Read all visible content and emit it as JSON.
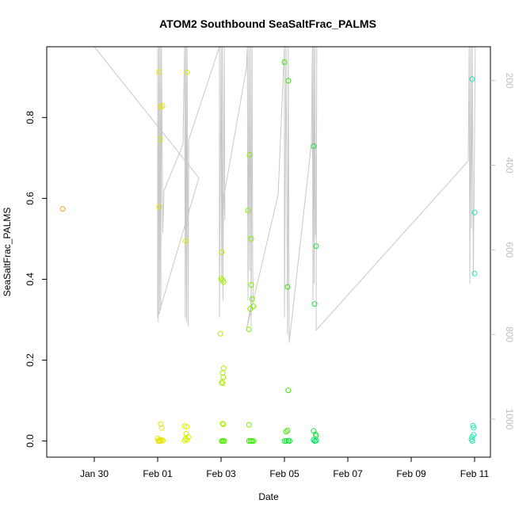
{
  "chart_data": {
    "type": "scatter",
    "title": "ATOM2 Southbound SeaSaltFrac_PALMS",
    "xlabel": "Date",
    "ylabel": "SeaSaltFrac_PALMS",
    "x_ticks": [
      "Jan 30",
      "Feb 01",
      "Feb 03",
      "Feb 05",
      "Feb 07",
      "Feb 09",
      "Feb 11"
    ],
    "x_tick_values": [
      1.5,
      3.5,
      5.5,
      7.5,
      9.5,
      11.5,
      13.5
    ],
    "xlim": [
      0,
      14
    ],
    "y_ticks": [
      0.0,
      0.2,
      0.4,
      0.6,
      0.8
    ],
    "y_tick_labels": [
      "0.0",
      "0.2",
      "0.4",
      "0.6",
      "0.8"
    ],
    "ylim": [
      -0.04,
      0.975
    ],
    "secondary_axis": {
      "label_color": "#bfbfbf",
      "ticks": [
        200,
        400,
        600,
        800,
        1000
      ],
      "tick_labels": [
        "200",
        "400",
        "600",
        "800",
        "1000"
      ],
      "lim": [
        1090,
        120
      ],
      "note": "pressure profile (reversed)"
    },
    "grid": false,
    "points": [
      {
        "x": 0.5,
        "y": 0.574,
        "color": "#f5a623"
      },
      {
        "x": 3.55,
        "y": 0.913,
        "color": "#e3e300"
      },
      {
        "x": 3.65,
        "y": 0.829,
        "color": "#e3e300"
      },
      {
        "x": 3.6,
        "y": 0.826,
        "color": "#e3e300"
      },
      {
        "x": 3.58,
        "y": 0.746,
        "color": "#e3e300"
      },
      {
        "x": 3.55,
        "y": 0.579,
        "color": "#e3e300"
      },
      {
        "x": 3.6,
        "y": 0.042,
        "color": "#e3e300"
      },
      {
        "x": 3.63,
        "y": 0.032,
        "color": "#e3e300"
      },
      {
        "x": 3.5,
        "y": 0.006,
        "color": "#e3e300"
      },
      {
        "x": 3.55,
        "y": 0.002,
        "color": "#e3e300"
      },
      {
        "x": 3.58,
        "y": 0.0,
        "color": "#e3e300"
      },
      {
        "x": 3.62,
        "y": 0.003,
        "color": "#e3e300"
      },
      {
        "x": 3.66,
        "y": 0.001,
        "color": "#e3e300"
      },
      {
        "x": 3.52,
        "y": 0.0,
        "color": "#e3e300"
      },
      {
        "x": 4.42,
        "y": 0.912,
        "color": "#d8f000"
      },
      {
        "x": 4.37,
        "y": 0.495,
        "color": "#d8f000"
      },
      {
        "x": 4.35,
        "y": 0.037,
        "color": "#d8f000"
      },
      {
        "x": 4.42,
        "y": 0.035,
        "color": "#d8f000"
      },
      {
        "x": 4.4,
        "y": 0.018,
        "color": "#d8f000"
      },
      {
        "x": 4.46,
        "y": 0.01,
        "color": "#d8f000"
      },
      {
        "x": 4.38,
        "y": 0.006,
        "color": "#d8f000"
      },
      {
        "x": 4.35,
        "y": 0.001,
        "color": "#d8f000"
      },
      {
        "x": 4.42,
        "y": 0.003,
        "color": "#d8f000"
      },
      {
        "x": 5.52,
        "y": 0.467,
        "color": "#a8f000"
      },
      {
        "x": 5.5,
        "y": 0.401,
        "color": "#a8f000"
      },
      {
        "x": 5.55,
        "y": 0.398,
        "color": "#a8f000"
      },
      {
        "x": 5.58,
        "y": 0.393,
        "color": "#a8f000"
      },
      {
        "x": 5.48,
        "y": 0.265,
        "color": "#a8f000"
      },
      {
        "x": 5.58,
        "y": 0.18,
        "color": "#a8f000"
      },
      {
        "x": 5.55,
        "y": 0.168,
        "color": "#a8f000"
      },
      {
        "x": 5.57,
        "y": 0.158,
        "color": "#a8f000"
      },
      {
        "x": 5.52,
        "y": 0.145,
        "color": "#a8f000"
      },
      {
        "x": 5.55,
        "y": 0.143,
        "color": "#a8f000"
      },
      {
        "x": 5.55,
        "y": 0.043,
        "color": "#a8f000"
      },
      {
        "x": 5.57,
        "y": 0.041,
        "color": "#a8f000"
      },
      {
        "x": 5.52,
        "y": 0.0,
        "color": "#4de800"
      },
      {
        "x": 5.56,
        "y": 0.0,
        "color": "#4de800"
      },
      {
        "x": 5.6,
        "y": 0.0,
        "color": "#4de800"
      },
      {
        "x": 6.4,
        "y": 0.708,
        "color": "#7ef000"
      },
      {
        "x": 6.35,
        "y": 0.57,
        "color": "#7ef000"
      },
      {
        "x": 6.45,
        "y": 0.5,
        "color": "#7ef000"
      },
      {
        "x": 6.45,
        "y": 0.386,
        "color": "#7ef000"
      },
      {
        "x": 6.48,
        "y": 0.351,
        "color": "#7ef000"
      },
      {
        "x": 6.52,
        "y": 0.333,
        "color": "#7ef000"
      },
      {
        "x": 6.42,
        "y": 0.327,
        "color": "#7ef000"
      },
      {
        "x": 6.38,
        "y": 0.276,
        "color": "#7ef000"
      },
      {
        "x": 6.38,
        "y": 0.04,
        "color": "#7ef000"
      },
      {
        "x": 6.38,
        "y": 0.0,
        "color": "#3ee600"
      },
      {
        "x": 6.43,
        "y": 0.0,
        "color": "#3ee600"
      },
      {
        "x": 6.47,
        "y": 0.0,
        "color": "#3ee600"
      },
      {
        "x": 6.52,
        "y": 0.0,
        "color": "#3ee600"
      },
      {
        "x": 7.5,
        "y": 0.937,
        "color": "#3ee600"
      },
      {
        "x": 7.62,
        "y": 0.891,
        "color": "#3ee600"
      },
      {
        "x": 7.6,
        "y": 0.381,
        "color": "#3ee600"
      },
      {
        "x": 7.62,
        "y": 0.125,
        "color": "#3ee600"
      },
      {
        "x": 7.55,
        "y": 0.023,
        "color": "#3ee600"
      },
      {
        "x": 7.6,
        "y": 0.026,
        "color": "#3ee600"
      },
      {
        "x": 7.5,
        "y": 0.0,
        "color": "#20e040"
      },
      {
        "x": 7.56,
        "y": 0.0,
        "color": "#20e040"
      },
      {
        "x": 7.62,
        "y": 0.001,
        "color": "#20e040"
      },
      {
        "x": 7.66,
        "y": 0.0,
        "color": "#20e040"
      },
      {
        "x": 8.42,
        "y": 0.729,
        "color": "#20e040"
      },
      {
        "x": 8.5,
        "y": 0.482,
        "color": "#20e040"
      },
      {
        "x": 8.45,
        "y": 0.339,
        "color": "#20e040"
      },
      {
        "x": 8.42,
        "y": 0.025,
        "color": "#20e040"
      },
      {
        "x": 8.48,
        "y": 0.016,
        "color": "#20e040"
      },
      {
        "x": 8.5,
        "y": 0.013,
        "color": "#20e040"
      },
      {
        "x": 8.42,
        "y": 0.003,
        "color": "#00e060"
      },
      {
        "x": 8.46,
        "y": 0.0,
        "color": "#00e060"
      },
      {
        "x": 8.5,
        "y": 0.001,
        "color": "#00e060"
      },
      {
        "x": 13.42,
        "y": 0.895,
        "color": "#22e8b0"
      },
      {
        "x": 13.5,
        "y": 0.565,
        "color": "#22e8b0"
      },
      {
        "x": 13.5,
        "y": 0.414,
        "color": "#22e8b0"
      },
      {
        "x": 13.45,
        "y": 0.038,
        "color": "#22e8b0"
      },
      {
        "x": 13.47,
        "y": 0.033,
        "color": "#22e8b0"
      },
      {
        "x": 13.47,
        "y": 0.015,
        "color": "#22e8b0"
      },
      {
        "x": 13.42,
        "y": 0.01,
        "color": "#22e8b0"
      },
      {
        "x": 13.4,
        "y": 0.004,
        "color": "#22e8b0"
      },
      {
        "x": 13.43,
        "y": 0.0,
        "color": "#22e8b0"
      }
    ],
    "profile_line_color": "#c8c8c8",
    "profile_line": [
      [
        1.5,
        120
      ],
      [
        4.8,
        430
      ],
      [
        3.5,
        760
      ],
      [
        3.5,
        120
      ],
      [
        3.52,
        770
      ],
      [
        3.54,
        120
      ],
      [
        3.56,
        750
      ],
      [
        3.58,
        120
      ],
      [
        3.6,
        740
      ],
      [
        3.62,
        120
      ],
      [
        3.66,
        560
      ],
      [
        3.7,
        460
      ],
      [
        4.3,
        350
      ],
      [
        4.35,
        120
      ],
      [
        4.37,
        760
      ],
      [
        4.39,
        120
      ],
      [
        4.41,
        770
      ],
      [
        4.43,
        120
      ],
      [
        4.46,
        780
      ],
      [
        4.48,
        340
      ],
      [
        5.45,
        120
      ],
      [
        5.45,
        760
      ],
      [
        5.5,
        120
      ],
      [
        5.52,
        680
      ],
      [
        5.54,
        120
      ],
      [
        5.56,
        720
      ],
      [
        5.6,
        120
      ],
      [
        5.62,
        530
      ],
      [
        5.6,
        470
      ],
      [
        6.3,
        170
      ],
      [
        6.33,
        120
      ],
      [
        6.35,
        720
      ],
      [
        6.38,
        120
      ],
      [
        6.4,
        650
      ],
      [
        6.43,
        120
      ],
      [
        6.45,
        780
      ],
      [
        6.48,
        120
      ],
      [
        6.5,
        660
      ],
      [
        6.52,
        700
      ],
      [
        6.3,
        790
      ],
      [
        7.3,
        470
      ],
      [
        7.5,
        120
      ],
      [
        7.5,
        760
      ],
      [
        7.55,
        120
      ],
      [
        7.6,
        800
      ],
      [
        7.62,
        120
      ],
      [
        7.65,
        820
      ],
      [
        8.35,
        350
      ],
      [
        8.38,
        120
      ],
      [
        8.4,
        720
      ],
      [
        8.42,
        120
      ],
      [
        8.44,
        680
      ],
      [
        8.46,
        120
      ],
      [
        8.48,
        560
      ],
      [
        8.5,
        570
      ],
      [
        8.52,
        120
      ],
      [
        8.5,
        790
      ],
      [
        13.3,
        390
      ],
      [
        13.33,
        120
      ],
      [
        13.35,
        680
      ],
      [
        13.38,
        120
      ],
      [
        13.4,
        550
      ],
      [
        13.43,
        120
      ],
      [
        13.46,
        660
      ],
      [
        13.5,
        330
      ],
      [
        13.52,
        120
      ]
    ]
  }
}
